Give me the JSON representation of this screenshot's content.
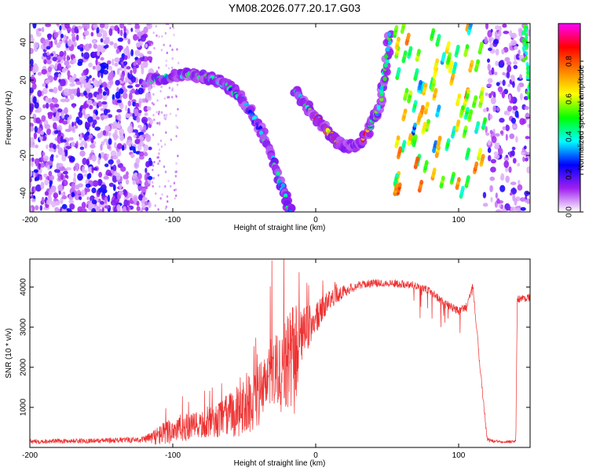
{
  "title": "YM08.2026.077.20.17.G03",
  "chart_data": [
    {
      "type": "heatmap",
      "name": "spectrogram",
      "xlabel": "Height of straight line (km)",
      "ylabel": "Frequency (Hz)",
      "xlim": [
        -200,
        150
      ],
      "ylim": [
        -50,
        50
      ],
      "xticks": [
        -200,
        -100,
        0,
        100
      ],
      "yticks": [
        -40,
        -20,
        0,
        20,
        40
      ],
      "colorbar": {
        "label": "Normalized spectral amplitude",
        "range": [
          0,
          1
        ],
        "ticks": [
          0.0,
          0.2,
          0.4,
          0.6,
          0.8
        ],
        "tick_labels": [
          "0.0",
          "0.2",
          "0.4",
          "0.6",
          "0.8"
        ],
        "colors": [
          "#ffffff",
          "#a020f0",
          "#0000ff",
          "#00ffff",
          "#00ff00",
          "#ffff00",
          "#ff8000",
          "#ff0000",
          "#ff00ff"
        ]
      },
      "features": [
        {
          "name": "upper arc",
          "x": [
            -118,
            -100,
            -90,
            -80,
            -70,
            -60,
            -50,
            -40,
            -30,
            -22,
            -18
          ],
          "y": [
            20,
            22,
            23,
            22,
            20,
            16,
            8,
            -4,
            -22,
            -40,
            -50
          ]
        },
        {
          "name": "lower arc",
          "x": [
            -14,
            -10,
            -5,
            0,
            5,
            10,
            15,
            20,
            25,
            30,
            35,
            40,
            45,
            48,
            52
          ],
          "y": [
            15,
            10,
            5,
            0,
            -5,
            -9,
            -13,
            -15,
            -15,
            -14,
            -9,
            -2,
            7,
            22,
            45
          ]
        },
        {
          "name": "right cluster",
          "x_range": [
            55,
            118
          ],
          "y_range": [
            -50,
            50
          ]
        },
        {
          "name": "noise left",
          "x_range": [
            -200,
            -115
          ]
        },
        {
          "name": "noise right",
          "x_range": [
            118,
            150
          ]
        }
      ]
    },
    {
      "type": "line",
      "name": "snr",
      "xlabel": "Height of straight line (km)",
      "ylabel": "SNR (10 * v/v)",
      "xlim": [
        -200,
        150
      ],
      "ylim": [
        0,
        4700
      ],
      "xticks": [
        -200,
        -100,
        0,
        100
      ],
      "yticks": [
        1000,
        2000,
        3000,
        4000
      ],
      "color": "#ee3030",
      "x": [
        -200,
        -150,
        -120,
        -110,
        -100,
        -90,
        -80,
        -70,
        -60,
        -50,
        -40,
        -30,
        -20,
        -15,
        -10,
        0,
        10,
        20,
        30,
        40,
        50,
        60,
        70,
        80,
        90,
        100,
        105,
        110,
        115,
        120,
        125,
        130,
        140,
        141,
        150
      ],
      "y": [
        150,
        170,
        200,
        300,
        450,
        500,
        550,
        650,
        800,
        1000,
        1300,
        1700,
        2000,
        2200,
        2800,
        3200,
        3700,
        3900,
        4050,
        4100,
        4100,
        4080,
        4050,
        3900,
        3600,
        3400,
        3500,
        4000,
        2000,
        200,
        150,
        150,
        150,
        3700,
        3750
      ],
      "noise": [
        60,
        60,
        80,
        250,
        350,
        350,
        350,
        400,
        600,
        700,
        800,
        1000,
        1200,
        1500,
        700,
        400,
        250,
        150,
        100,
        100,
        100,
        100,
        100,
        100,
        100,
        100,
        100,
        100,
        100,
        50,
        40,
        40,
        40,
        100,
        100
      ]
    }
  ]
}
